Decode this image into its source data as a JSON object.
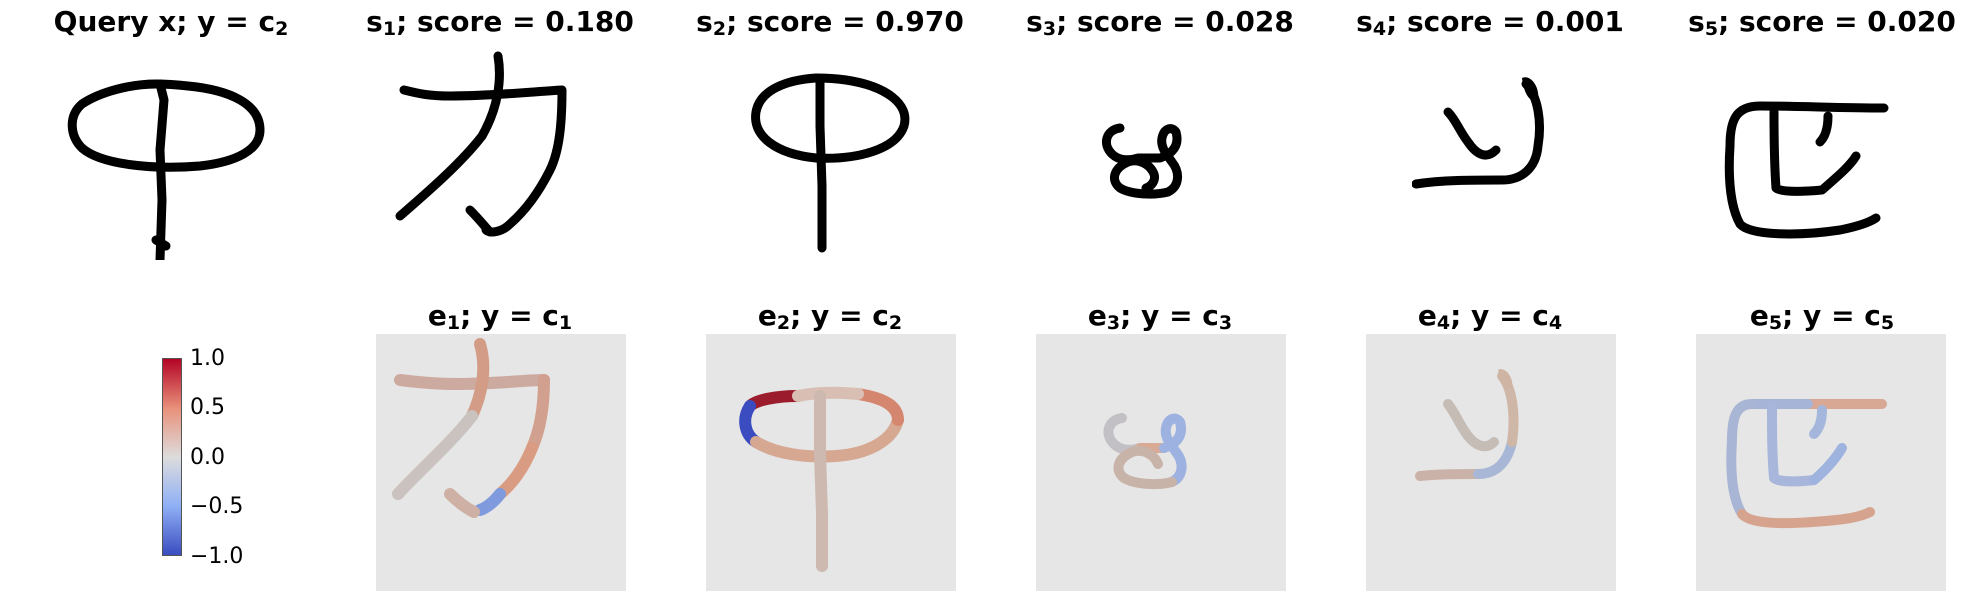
{
  "query": {
    "name": "Query x",
    "label_var": "y",
    "label_class": "c",
    "label_sub": "2"
  },
  "support": [
    {
      "s": "s",
      "idx": "1",
      "score_text": "score = 0.180",
      "score": 0.18
    },
    {
      "s": "s",
      "idx": "2",
      "score_text": "score = 0.970",
      "score": 0.97
    },
    {
      "s": "s",
      "idx": "3",
      "score_text": "score = 0.028",
      "score": 0.028
    },
    {
      "s": "s",
      "idx": "4",
      "score_text": "score = 0.001",
      "score": 0.001
    },
    {
      "s": "s",
      "idx": "5",
      "score_text": "score = 0.020",
      "score": 0.02
    }
  ],
  "explanations": [
    {
      "e": "e",
      "idx": "1",
      "y": "y",
      "c": "c",
      "cidx": "1"
    },
    {
      "e": "e",
      "idx": "2",
      "y": "y",
      "c": "c",
      "cidx": "2"
    },
    {
      "e": "e",
      "idx": "3",
      "y": "y",
      "c": "c",
      "cidx": "3"
    },
    {
      "e": "e",
      "idx": "4",
      "y": "y",
      "c": "c",
      "cidx": "4"
    },
    {
      "e": "e",
      "idx": "5",
      "y": "y",
      "c": "c",
      "cidx": "5"
    }
  ],
  "colorbar": {
    "ticks": [
      "1.0",
      "0.5",
      "0.0",
      "−0.5",
      "−1.0"
    ],
    "colormap": "coolwarm",
    "colors": {
      "high": "#b40426",
      "mid": "#dddcdc",
      "low": "#3b4cc0"
    }
  }
}
